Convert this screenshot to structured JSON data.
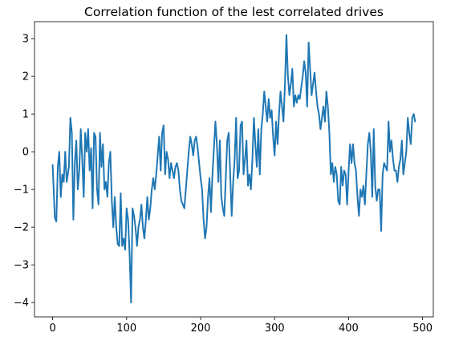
{
  "chart_data": {
    "type": "line",
    "title": "Correlation function of the lest correlated drives",
    "xlabel": "",
    "ylabel": "",
    "xlim": [
      -24.5,
      514.5
    ],
    "ylim": [
      -4.38,
      3.45
    ],
    "grid": false,
    "x_ticks": [
      0,
      100,
      200,
      300,
      400,
      500
    ],
    "y_ticks": [
      -4,
      -3,
      -2,
      -1,
      0,
      1,
      2,
      3
    ],
    "x_tick_labels": [
      "0",
      "100",
      "200",
      "300",
      "400",
      "500"
    ],
    "y_tick_labels": [
      "−4",
      "−3",
      "−2",
      "−1",
      "0",
      "1",
      "2",
      "3"
    ],
    "series": [
      {
        "color": "#1f77b4",
        "x": [
          0,
          3,
          5,
          7,
          9,
          11,
          13,
          15,
          17,
          19,
          22,
          24,
          26,
          28,
          30,
          32,
          34,
          36,
          38,
          40,
          42,
          44,
          46,
          48,
          50,
          52,
          54,
          56,
          58,
          60,
          62,
          64,
          66,
          68,
          70,
          72,
          74,
          76,
          78,
          80,
          82,
          84,
          86,
          88,
          90,
          92,
          94,
          96,
          98,
          100,
          102,
          104,
          106,
          108,
          110,
          112,
          114,
          116,
          118,
          120,
          122,
          124,
          126,
          128,
          130,
          132,
          134,
          136,
          138,
          140,
          142,
          144,
          146,
          148,
          150,
          152,
          154,
          156,
          158,
          160,
          162,
          164,
          166,
          168,
          170,
          172,
          174,
          176,
          178,
          180,
          182,
          184,
          186,
          188,
          190,
          192,
          194,
          196,
          198,
          200,
          202,
          204,
          206,
          208,
          210,
          212,
          214,
          216,
          218,
          220,
          222,
          224,
          226,
          228,
          230,
          232,
          234,
          236,
          238,
          240,
          242,
          244,
          246,
          248,
          250,
          252,
          254,
          256,
          258,
          260,
          262,
          264,
          266,
          268,
          270,
          272,
          274,
          276,
          278,
          280,
          282,
          284,
          286,
          288,
          290,
          292,
          294,
          296,
          298,
          300,
          302,
          304,
          306,
          308,
          310,
          312,
          314,
          316,
          318,
          320,
          322,
          324,
          326,
          328,
          330,
          332,
          334,
          336,
          338,
          340,
          342,
          344,
          346,
          348,
          350,
          352,
          354,
          356,
          358,
          360,
          362,
          364,
          366,
          368,
          370,
          372,
          374,
          376,
          378,
          380,
          382,
          384,
          386,
          388,
          390,
          392,
          394,
          396,
          398,
          400,
          402,
          404,
          406,
          408,
          410,
          412,
          414,
          416,
          418,
          420,
          422,
          424,
          426,
          428,
          430,
          432,
          434,
          436,
          438,
          440,
          442,
          444,
          446,
          448,
          450,
          452,
          454,
          456,
          458,
          460,
          462,
          464,
          466,
          468,
          470,
          472,
          474,
          476,
          478,
          480,
          482,
          484,
          486,
          488,
          490
        ],
        "values": [
          -0.35,
          -1.75,
          -1.85,
          -0.4,
          0.0,
          -1.2,
          -0.6,
          -0.8,
          0.0,
          -0.8,
          -0.4,
          0.9,
          0.5,
          -1.8,
          -0.3,
          0.3,
          -1.0,
          -0.5,
          0.6,
          -0.2,
          -1.2,
          0.5,
          0.0,
          0.6,
          -0.5,
          0.1,
          -1.5,
          0.5,
          0.4,
          -1.0,
          -1.4,
          0.5,
          -0.4,
          0.2,
          -1.0,
          -0.8,
          -1.2,
          -0.3,
          0.0,
          -1.3,
          -2.0,
          -1.2,
          -2.0,
          -2.45,
          -2.5,
          -1.1,
          -2.5,
          -2.3,
          -2.6,
          -1.5,
          -1.8,
          -2.7,
          -4.0,
          -1.5,
          -1.7,
          -2.0,
          -2.5,
          -2.0,
          -1.8,
          -1.4,
          -2.0,
          -2.3,
          -1.8,
          -1.2,
          -1.8,
          -1.5,
          -1.0,
          -0.7,
          -1.0,
          -0.6,
          -0.1,
          0.4,
          -0.5,
          0.5,
          0.7,
          -0.6,
          0.0,
          -0.2,
          -0.7,
          -0.3,
          -0.5,
          -0.7,
          -0.4,
          -0.3,
          -0.5,
          -1.0,
          -1.3,
          -1.4,
          -1.5,
          -1.0,
          -0.5,
          0.0,
          0.4,
          0.2,
          -0.1,
          0.3,
          0.4,
          0.1,
          -0.3,
          -0.7,
          -1.0,
          -1.8,
          -2.3,
          -2.0,
          -1.2,
          -0.7,
          -1.6,
          -0.6,
          0.1,
          0.8,
          0.2,
          -0.8,
          0.3,
          -1.2,
          -1.5,
          -1.7,
          -0.7,
          0.3,
          0.5,
          -0.6,
          -1.7,
          -0.8,
          -0.2,
          0.9,
          -0.7,
          -0.5,
          0.7,
          0.8,
          -0.6,
          -0.2,
          0.3,
          -0.9,
          -0.6,
          -1.0,
          -0.2,
          0.9,
          0.2,
          -0.4,
          0.6,
          -0.6,
          0.6,
          1.0,
          1.6,
          1.2,
          0.8,
          1.4,
          0.9,
          1.1,
          0.4,
          -0.1,
          0.8,
          0.2,
          1.0,
          1.6,
          1.2,
          0.8,
          1.8,
          3.1,
          2.0,
          1.5,
          1.8,
          2.2,
          1.2,
          1.5,
          1.3,
          1.5,
          1.4,
          1.7,
          2.0,
          2.4,
          2.1,
          1.2,
          2.9,
          2.2,
          1.5,
          1.8,
          2.1,
          1.6,
          1.2,
          1.0,
          0.6,
          0.9,
          1.2,
          0.8,
          1.6,
          1.2,
          0.5,
          -0.6,
          -0.3,
          -0.8,
          -0.4,
          -0.6,
          -1.3,
          -1.4,
          -0.4,
          -0.9,
          -0.5,
          -0.6,
          -1.4,
          -0.5,
          0.2,
          -0.3,
          0.2,
          -0.3,
          -0.5,
          -1.2,
          -1.7,
          -1.0,
          -1.2,
          -0.9,
          -1.4,
          -0.6,
          0.2,
          0.5,
          0.0,
          -1.2,
          0.6,
          -0.9,
          -1.3,
          -1.0,
          -1.0,
          -2.1,
          -0.6,
          -0.3,
          -0.4,
          -0.5,
          0.8,
          0.0,
          0.3,
          -0.2,
          -0.5,
          -0.5,
          -0.8,
          -0.4,
          -0.2,
          0.3,
          -0.6,
          -0.3,
          0.0,
          0.9,
          0.5,
          0.2,
          0.9,
          1.0,
          0.8
        ]
      }
    ]
  }
}
